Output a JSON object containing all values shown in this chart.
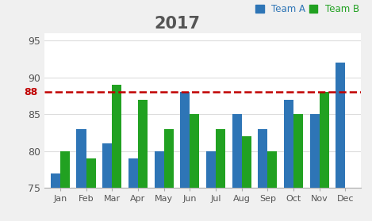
{
  "title": "2017",
  "categories": [
    "Jan",
    "Feb",
    "Mar",
    "Apr",
    "May",
    "Jun",
    "Jul",
    "Aug",
    "Sep",
    "Oct",
    "Nov",
    "Dec"
  ],
  "team_a": [
    77,
    83,
    81,
    79,
    80,
    88,
    80,
    85,
    83,
    87,
    85,
    92
  ],
  "team_b": [
    80,
    79,
    89,
    87,
    83,
    85,
    83,
    82,
    80,
    85,
    88,
    null
  ],
  "color_a": "#2E75B6",
  "color_b": "#21A121",
  "hline_y": 88,
  "hline_color": "#C00000",
  "ylim": [
    75,
    96
  ],
  "yticks": [
    75,
    80,
    85,
    90,
    95
  ],
  "background": "#FFFFFF",
  "fig_background": "#F0F0F0",
  "title_color": "#555555",
  "tick_color": "#555555",
  "legend_a": "Team A",
  "legend_b": "Team B",
  "bar_width": 0.37
}
